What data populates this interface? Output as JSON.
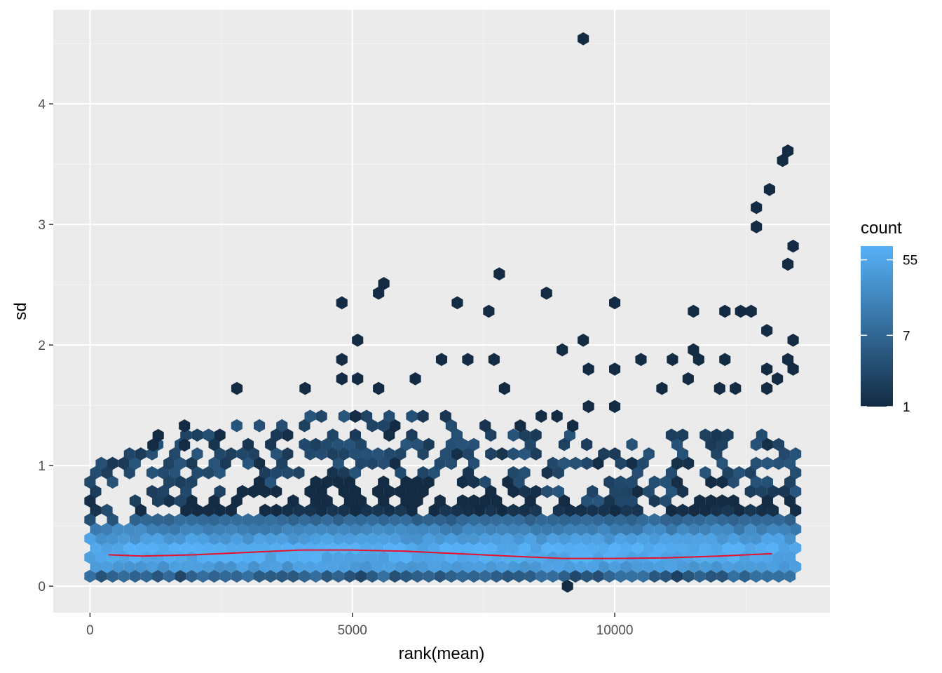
{
  "chart_data": {
    "type": "hexbin",
    "title": "",
    "xlabel": "rank(mean)",
    "ylabel": "sd",
    "xlim": [
      -700,
      14100
    ],
    "ylim": [
      -0.22,
      4.78
    ],
    "x_ticks": [
      0,
      5000,
      10000
    ],
    "x_tick_labels": [
      "0",
      "5000",
      "10000"
    ],
    "y_ticks": [
      0,
      1,
      2,
      3,
      4
    ],
    "y_tick_labels": [
      "0",
      "1",
      "2",
      "3",
      "4"
    ],
    "grid": true,
    "legend": {
      "title": "count",
      "position": "right",
      "scale": "log",
      "breaks": [
        55,
        7,
        1
      ],
      "break_labels": [
        "55",
        "7",
        "1"
      ],
      "range": [
        1,
        80
      ],
      "color_low": "#132B43",
      "color_high": "#56B1F7"
    },
    "smooth_line": {
      "color": "#e8102a",
      "x": [
        350,
        1000,
        2000,
        3000,
        4000,
        5000,
        6000,
        7000,
        8000,
        9000,
        10000,
        11000,
        12000,
        13000
      ],
      "y": [
        0.26,
        0.25,
        0.26,
        0.28,
        0.3,
        0.3,
        0.29,
        0.27,
        0.25,
        0.23,
        0.23,
        0.235,
        0.25,
        0.27
      ]
    },
    "outliers": [
      {
        "x": 9400,
        "y": 4.54
      },
      {
        "x": 13300,
        "y": 3.61
      },
      {
        "x": 13200,
        "y": 3.53
      },
      {
        "x": 12950,
        "y": 3.29
      },
      {
        "x": 12700,
        "y": 3.14
      },
      {
        "x": 12700,
        "y": 2.98
      },
      {
        "x": 13400,
        "y": 2.82
      },
      {
        "x": 13300,
        "y": 2.67
      },
      {
        "x": 7800,
        "y": 2.59
      },
      {
        "x": 5600,
        "y": 2.51
      },
      {
        "x": 5500,
        "y": 2.43
      },
      {
        "x": 8700,
        "y": 2.43
      },
      {
        "x": 4800,
        "y": 2.35
      },
      {
        "x": 7000,
        "y": 2.35
      },
      {
        "x": 10000,
        "y": 2.35
      },
      {
        "x": 7600,
        "y": 2.28
      },
      {
        "x": 11500,
        "y": 2.28
      },
      {
        "x": 12100,
        "y": 2.28
      },
      {
        "x": 12400,
        "y": 2.28
      },
      {
        "x": 12600,
        "y": 2.28
      },
      {
        "x": 12900,
        "y": 2.12
      },
      {
        "x": 5100,
        "y": 2.04
      },
      {
        "x": 9400,
        "y": 2.04
      },
      {
        "x": 13400,
        "y": 2.04
      },
      {
        "x": 9000,
        "y": 1.96
      },
      {
        "x": 11500,
        "y": 1.96
      },
      {
        "x": 4800,
        "y": 1.88
      },
      {
        "x": 6700,
        "y": 1.88
      },
      {
        "x": 7200,
        "y": 1.88
      },
      {
        "x": 7700,
        "y": 1.88
      },
      {
        "x": 10500,
        "y": 1.88
      },
      {
        "x": 11100,
        "y": 1.88
      },
      {
        "x": 11600,
        "y": 1.88
      },
      {
        "x": 12100,
        "y": 1.88
      },
      {
        "x": 13300,
        "y": 1.88
      },
      {
        "x": 9500,
        "y": 1.8
      },
      {
        "x": 10000,
        "y": 1.8
      },
      {
        "x": 12900,
        "y": 1.8
      },
      {
        "x": 13400,
        "y": 1.8
      },
      {
        "x": 4800,
        "y": 1.72
      },
      {
        "x": 5100,
        "y": 1.72
      },
      {
        "x": 6200,
        "y": 1.72
      },
      {
        "x": 11400,
        "y": 1.72
      },
      {
        "x": 13100,
        "y": 1.72
      },
      {
        "x": 2800,
        "y": 1.64
      },
      {
        "x": 4100,
        "y": 1.64
      },
      {
        "x": 5500,
        "y": 1.64
      },
      {
        "x": 7900,
        "y": 1.64
      },
      {
        "x": 10900,
        "y": 1.64
      },
      {
        "x": 12000,
        "y": 1.64
      },
      {
        "x": 12300,
        "y": 1.64
      },
      {
        "x": 12900,
        "y": 1.64
      },
      {
        "x": 1800,
        "y": 1.33
      },
      {
        "x": 1300,
        "y": 1.25
      },
      {
        "x": 1200,
        "y": 1.17
      },
      {
        "x": 1800,
        "y": 1.17
      },
      {
        "x": 9200,
        "y": 1.33
      },
      {
        "x": 8600,
        "y": 1.41
      },
      {
        "x": 8900,
        "y": 1.41
      },
      {
        "x": 9500,
        "y": 1.49
      },
      {
        "x": 10000,
        "y": 1.49
      },
      {
        "x": 8200,
        "y": 1.33
      },
      {
        "x": 9100,
        "y": 0.0
      }
    ]
  }
}
